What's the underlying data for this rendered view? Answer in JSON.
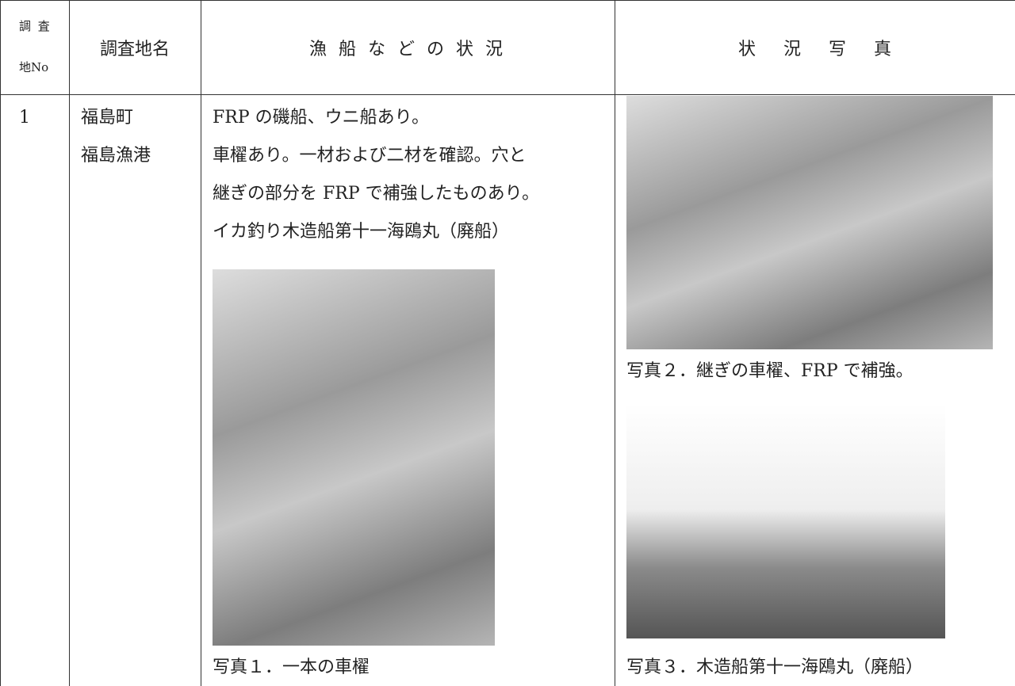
{
  "table": {
    "headers": [
      [
        "調 査",
        "地No"
      ],
      "調査地名",
      "漁 船 な ど の 状 況",
      "状 況 写 真"
    ],
    "rows": [
      [
        "1",
        [
          "福島町",
          "福島漁港"
        ],
        {
          "lines": [
            "FRP の磯船、ウニ船あり。",
            "車櫂あり。一材および二材を確認。穴と",
            "継ぎの部分を FRP で補強したものあり。",
            "イカ釣り木造船第十一海鴎丸（廃船）"
          ],
          "photo_caption": "写真１．一本の車櫂"
        },
        {
          "photo_captions": [
            "写真２．継ぎの車櫂、FRP で補強。",
            "写真３．木造船第十一海鴎丸（廃船）"
          ]
        }
      ]
    ]
  }
}
